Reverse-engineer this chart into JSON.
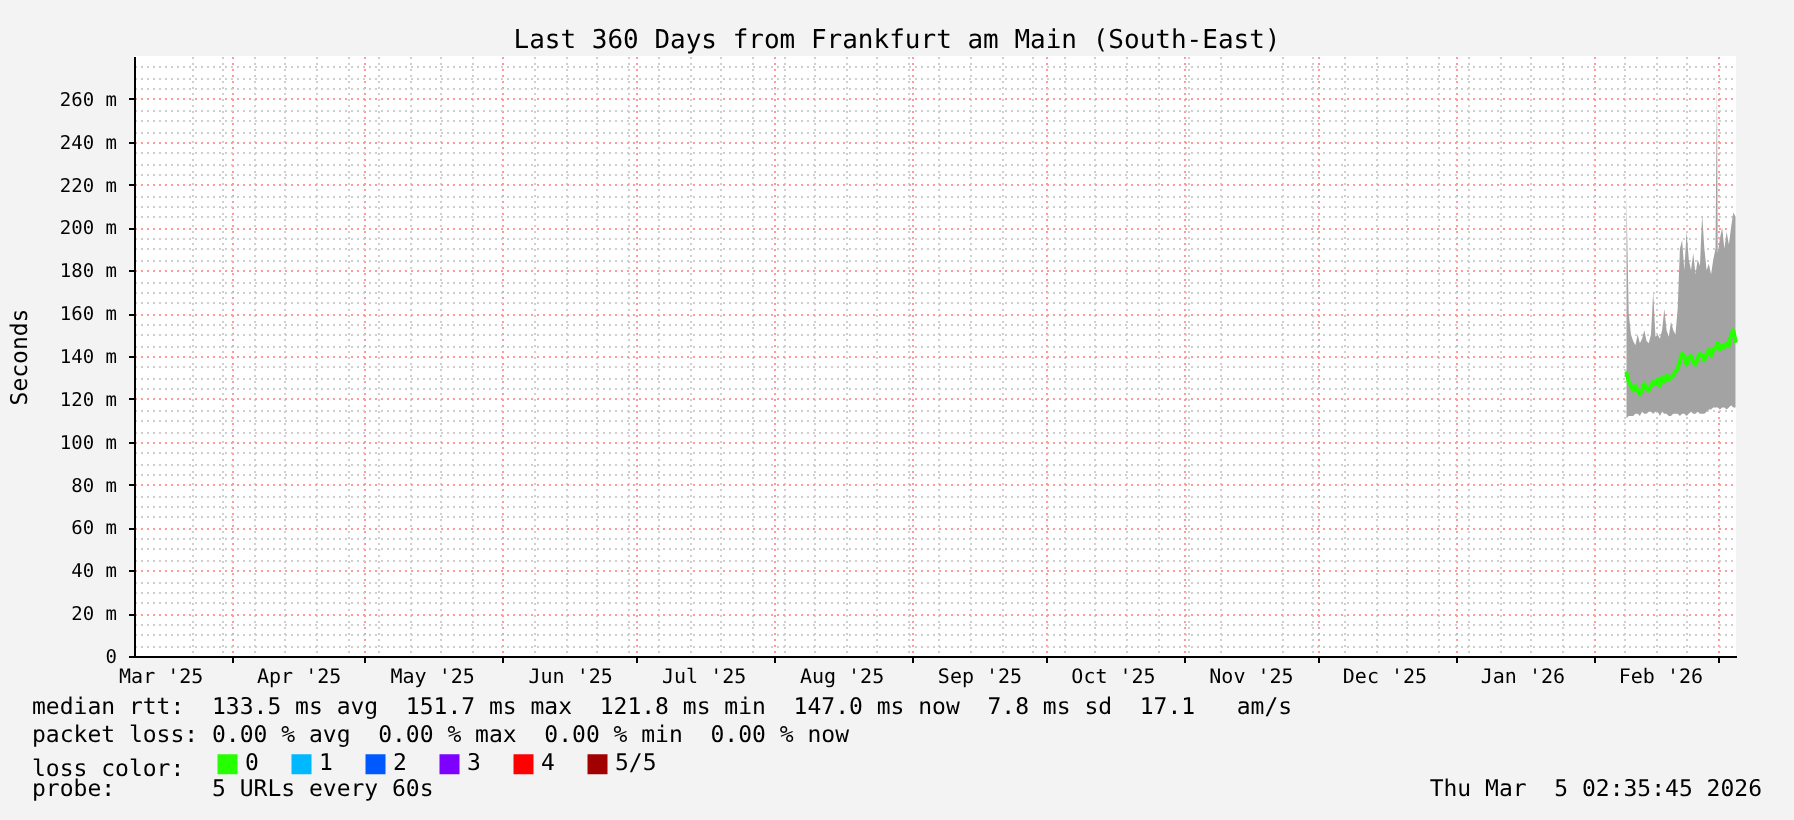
{
  "chart_data": {
    "type": "line",
    "title": "Last 360 Days from Frankfurt am Main (South-East)",
    "ylabel": "Seconds",
    "legend_title": "loss color:",
    "legend": "bottom",
    "grid": true,
    "annotations": [
      "median rtt:  133.5 ms avg  151.7 ms max  121.8 ms min  147.0 ms now  7.8 ms sd  17.1   am/s",
      "packet loss: 0.00 % avg  0.00 % max  0.00 % min  0.00 % now",
      "probe:       5 URLs every 60s",
      "Thu Mar  5 02:35:45 2026"
    ],
    "xlim": [
      "2025-03-10T02:35",
      "2026-03-05T02:35"
    ],
    "xticks": [
      {
        "value": "2025-03-16",
        "label": "Mar '25"
      },
      {
        "value": "2025-03-23",
        "label": null
      },
      {
        "value": "2025-03-30",
        "label": null
      },
      {
        "value": "2025-04-01",
        "label": null
      },
      {
        "value": "2025-04-06",
        "label": null
      },
      {
        "value": "2025-04-13",
        "label": null
      },
      {
        "value": "2025-04-16",
        "label": "Apr '25"
      },
      {
        "value": "2025-04-20",
        "label": null
      },
      {
        "value": "2025-04-27",
        "label": null
      },
      {
        "value": "2025-05-01",
        "label": null
      },
      {
        "value": "2025-05-04",
        "label": null
      },
      {
        "value": "2025-05-11",
        "label": null
      },
      {
        "value": "2025-05-16",
        "label": "May '25"
      },
      {
        "value": "2025-05-18",
        "label": null
      },
      {
        "value": "2025-05-25",
        "label": null
      },
      {
        "value": "2025-06-01",
        "label": null
      },
      {
        "value": "2025-06-08",
        "label": null
      },
      {
        "value": "2025-06-15",
        "label": null
      },
      {
        "value": "2025-06-16",
        "label": "Jun '25"
      },
      {
        "value": "2025-06-22",
        "label": null
      },
      {
        "value": "2025-06-29",
        "label": null
      },
      {
        "value": "2025-07-01",
        "label": null
      },
      {
        "value": "2025-07-06",
        "label": null
      },
      {
        "value": "2025-07-13",
        "label": null
      },
      {
        "value": "2025-07-16",
        "label": "Jul '25"
      },
      {
        "value": "2025-07-20",
        "label": null
      },
      {
        "value": "2025-07-27",
        "label": null
      },
      {
        "value": "2025-08-01",
        "label": null
      },
      {
        "value": "2025-08-03",
        "label": null
      },
      {
        "value": "2025-08-10",
        "label": null
      },
      {
        "value": "2025-08-16",
        "label": "Aug '25"
      },
      {
        "value": "2025-08-17",
        "label": null
      },
      {
        "value": "2025-08-24",
        "label": null
      },
      {
        "value": "2025-08-31",
        "label": null
      },
      {
        "value": "2025-09-01",
        "label": null
      },
      {
        "value": "2025-09-07",
        "label": null
      },
      {
        "value": "2025-09-14",
        "label": null
      },
      {
        "value": "2025-09-16",
        "label": "Sep '25"
      },
      {
        "value": "2025-09-21",
        "label": null
      },
      {
        "value": "2025-09-28",
        "label": null
      },
      {
        "value": "2025-10-01",
        "label": null
      },
      {
        "value": "2025-10-05",
        "label": null
      },
      {
        "value": "2025-10-12",
        "label": null
      },
      {
        "value": "2025-10-16",
        "label": "Oct '25"
      },
      {
        "value": "2025-10-19",
        "label": null
      },
      {
        "value": "2025-10-26",
        "label": null
      },
      {
        "value": "2025-11-01",
        "label": null
      },
      {
        "value": "2025-11-02",
        "label": null
      },
      {
        "value": "2025-11-09",
        "label": null
      },
      {
        "value": "2025-11-16",
        "label": "Nov '25"
      },
      {
        "value": "2025-11-23",
        "label": null
      },
      {
        "value": "2025-11-30",
        "label": null
      },
      {
        "value": "2025-12-01",
        "label": null
      },
      {
        "value": "2025-12-07",
        "label": null
      },
      {
        "value": "2025-12-14",
        "label": null
      },
      {
        "value": "2025-12-16",
        "label": "Dec '25"
      },
      {
        "value": "2025-12-21",
        "label": null
      },
      {
        "value": "2025-12-28",
        "label": null
      },
      {
        "value": "2026-01-01",
        "label": null
      },
      {
        "value": "2026-01-04",
        "label": null
      },
      {
        "value": "2026-01-11",
        "label": null
      },
      {
        "value": "2026-01-16",
        "label": "Jan '26"
      },
      {
        "value": "2026-01-18",
        "label": null
      },
      {
        "value": "2026-01-25",
        "label": null
      },
      {
        "value": "2026-02-01",
        "label": null
      },
      {
        "value": "2026-02-08",
        "label": null
      },
      {
        "value": "2026-02-15",
        "label": null
      },
      {
        "value": "2026-02-16",
        "label": "Feb '26"
      },
      {
        "value": "2026-02-22",
        "label": null
      },
      {
        "value": "2026-03-01",
        "label": null
      }
    ],
    "ylim": [
      0,
      280
    ],
    "yticks": [
      0,
      {
        "value": 5,
        "label": null
      },
      {
        "value": 10,
        "label": null
      },
      {
        "value": 15,
        "label": null
      },
      {
        "value": 20,
        "label": "20 m"
      },
      {
        "value": 25,
        "label": null
      },
      {
        "value": 30,
        "label": null
      },
      {
        "value": 35,
        "label": null
      },
      {
        "value": 40,
        "label": "40 m"
      },
      {
        "value": 45,
        "label": null
      },
      {
        "value": 50,
        "label": null
      },
      {
        "value": 55,
        "label": null
      },
      {
        "value": 60,
        "label": "60 m"
      },
      {
        "value": 65,
        "label": null
      },
      {
        "value": 70,
        "label": null
      },
      {
        "value": 75,
        "label": null
      },
      {
        "value": 80,
        "label": "80 m"
      },
      {
        "value": 85,
        "label": null
      },
      {
        "value": 90,
        "label": null
      },
      {
        "value": 95,
        "label": null
      },
      {
        "value": 100,
        "label": "100 m"
      },
      {
        "value": 105,
        "label": null
      },
      {
        "value": 110,
        "label": null
      },
      {
        "value": 115,
        "label": null
      },
      {
        "value": 120,
        "label": "120 m"
      },
      {
        "value": 125,
        "label": null
      },
      {
        "value": 130,
        "label": null
      },
      {
        "value": 135,
        "label": null
      },
      {
        "value": 140,
        "label": "140 m"
      },
      {
        "value": 145,
        "label": null
      },
      {
        "value": 150,
        "label": null
      },
      {
        "value": 155,
        "label": null
      },
      {
        "value": 160,
        "label": "160 m"
      },
      {
        "value": 165,
        "label": null
      },
      {
        "value": 170,
        "label": null
      },
      {
        "value": 175,
        "label": null
      },
      {
        "value": 180,
        "label": "180 m"
      },
      {
        "value": 185,
        "label": null
      },
      {
        "value": 190,
        "label": null
      },
      {
        "value": 195,
        "label": null
      },
      {
        "value": 200,
        "label": "200 m"
      },
      {
        "value": 205,
        "label": null
      },
      {
        "value": 210,
        "label": null
      },
      {
        "value": 215,
        "label": null
      },
      {
        "value": 220,
        "label": "220 m"
      },
      {
        "value": 225,
        "label": null
      },
      {
        "value": 230,
        "label": null
      },
      {
        "value": 235,
        "label": null
      },
      {
        "value": 240,
        "label": "240 m"
      },
      {
        "value": 245,
        "label": null
      },
      {
        "value": 250,
        "label": null
      },
      {
        "value": 255,
        "label": null
      },
      {
        "value": 260,
        "label": "260 m"
      },
      {
        "value": 265,
        "label": null
      },
      {
        "value": 270,
        "label": null
      },
      {
        "value": 275,
        "label": null
      }
    ],
    "x": [
      "2026-02-08T12:00",
      "2026-02-09T00:00",
      "2026-02-09T12:00",
      "2026-02-10T00:00",
      "2026-02-10T12:00",
      "2026-02-11T00:00",
      "2026-02-11T12:00",
      "2026-02-12T00:00",
      "2026-02-12T12:00",
      "2026-02-13T00:00",
      "2026-02-13T12:00",
      "2026-02-14T00:00",
      "2026-02-14T12:00",
      "2026-02-15T00:00",
      "2026-02-15T12:00",
      "2026-02-16T00:00",
      "2026-02-16T12:00",
      "2026-02-17T00:00",
      "2026-02-17T12:00",
      "2026-02-18T00:00",
      "2026-02-18T12:00",
      "2026-02-19T00:00",
      "2026-02-19T12:00",
      "2026-02-20T00:00",
      "2026-02-20T12:00",
      "2026-02-21T00:00",
      "2026-02-21T12:00",
      "2026-02-22T00:00",
      "2026-02-22T12:00",
      "2026-02-23T00:00",
      "2026-02-23T12:00",
      "2026-02-24T00:00",
      "2026-02-24T12:00",
      "2026-02-25T00:00",
      "2026-02-25T12:00",
      "2026-02-26T00:00",
      "2026-02-26T12:00",
      "2026-02-27T00:00",
      "2026-02-27T12:00",
      "2026-02-28T00:00",
      "2026-02-28T12:00",
      "2026-02-28T20:00",
      "2026-03-01T00:00",
      "2026-03-01T12:00",
      "2026-03-02T00:00",
      "2026-03-02T12:00",
      "2026-03-03T00:00",
      "2026-03-03T12:00",
      "2026-03-04T00:00",
      "2026-03-04T12:00",
      "2026-03-05T00:00"
    ],
    "series": [
      {
        "name": "0",
        "color": "#26ff00",
        "values": [
          132,
          128,
          126,
          124,
          126,
          124,
          122,
          124,
          127,
          125,
          124,
          126,
          128,
          127,
          129,
          126,
          130,
          128,
          131,
          129,
          130,
          131,
          133,
          134,
          138,
          141,
          140,
          136,
          139,
          140,
          137,
          136,
          139,
          141,
          140,
          138,
          141,
          143,
          140,
          143,
          144,
          145,
          146,
          143,
          145,
          144,
          146,
          145,
          150,
          152,
          147
        ],
        "lower": [
          111,
          112,
          112,
          112,
          113,
          113,
          112,
          114,
          113,
          113,
          114,
          114,
          113,
          114,
          114,
          112,
          114,
          113,
          113,
          112,
          112,
          113,
          113,
          113,
          112,
          113,
          113,
          112,
          113,
          114,
          113,
          113,
          114,
          113,
          113,
          113,
          114,
          115,
          115,
          116,
          116,
          116,
          116,
          115,
          116,
          116,
          115,
          116,
          117,
          116,
          116
        ],
        "upper": [
          215,
          160,
          150,
          147,
          145,
          150,
          146,
          148,
          152,
          147,
          146,
          150,
          170,
          149,
          150,
          148,
          152,
          162,
          152,
          149,
          156,
          152,
          150,
          162,
          190,
          194,
          180,
          198,
          185,
          180,
          188,
          178,
          185,
          182,
          206,
          190,
          180,
          183,
          178,
          185,
          190,
          270,
          188,
          195,
          200,
          190,
          198,
          192,
          200,
          207,
          205
        ]
      },
      {
        "name": "1",
        "color": "#00b8ff",
        "values": [
          null,
          null,
          null,
          null,
          null,
          null,
          null,
          null,
          null,
          null,
          null,
          null,
          null,
          null,
          null,
          null,
          null,
          null,
          null,
          null,
          null,
          null,
          null,
          null,
          null,
          null,
          null,
          null,
          null,
          null,
          null,
          null,
          null,
          null,
          null,
          null,
          null,
          null,
          null,
          null,
          null,
          null,
          null,
          null,
          null,
          null,
          null,
          null,
          null,
          null,
          null
        ]
      },
      {
        "name": "2",
        "color": "#0059ff",
        "values": [
          null,
          null,
          null,
          null,
          null,
          null,
          null,
          null,
          null,
          null,
          null,
          null,
          null,
          null,
          null,
          null,
          null,
          null,
          null,
          null,
          null,
          null,
          null,
          null,
          null,
          null,
          null,
          null,
          null,
          null,
          null,
          null,
          null,
          null,
          null,
          null,
          null,
          null,
          null,
          null,
          null,
          null,
          null,
          null,
          null,
          null,
          null,
          null,
          null,
          null,
          null
        ]
      },
      {
        "name": "3",
        "color": "#7e00ff",
        "values": [
          null,
          null,
          null,
          null,
          null,
          null,
          null,
          null,
          null,
          null,
          null,
          null,
          null,
          null,
          null,
          null,
          null,
          null,
          null,
          null,
          null,
          null,
          null,
          null,
          null,
          null,
          null,
          null,
          null,
          null,
          null,
          null,
          null,
          null,
          null,
          null,
          null,
          null,
          null,
          null,
          null,
          null,
          null,
          null,
          null,
          null,
          null,
          null,
          null,
          null,
          null
        ]
      },
      {
        "name": "4",
        "color": "#ff0000",
        "values": [
          null,
          null,
          null,
          null,
          null,
          null,
          null,
          null,
          null,
          null,
          null,
          null,
          null,
          null,
          null,
          null,
          null,
          null,
          null,
          null,
          null,
          null,
          null,
          null,
          null,
          null,
          null,
          null,
          null,
          null,
          null,
          null,
          null,
          null,
          null,
          null,
          null,
          null,
          null,
          null,
          null,
          null,
          null,
          null,
          null,
          null,
          null,
          null,
          null,
          null,
          null
        ]
      },
      {
        "name": "5/5",
        "color": "#a10000",
        "values": [
          null,
          null,
          null,
          null,
          null,
          null,
          null,
          null,
          null,
          null,
          null,
          null,
          null,
          null,
          null,
          null,
          null,
          null,
          null,
          null,
          null,
          null,
          null,
          null,
          null,
          null,
          null,
          null,
          null,
          null,
          null,
          null,
          null,
          null,
          null,
          null,
          null,
          null,
          null,
          null,
          null,
          null,
          null,
          null,
          null,
          null,
          null,
          null,
          null,
          null,
          null
        ]
      }
    ]
  }
}
